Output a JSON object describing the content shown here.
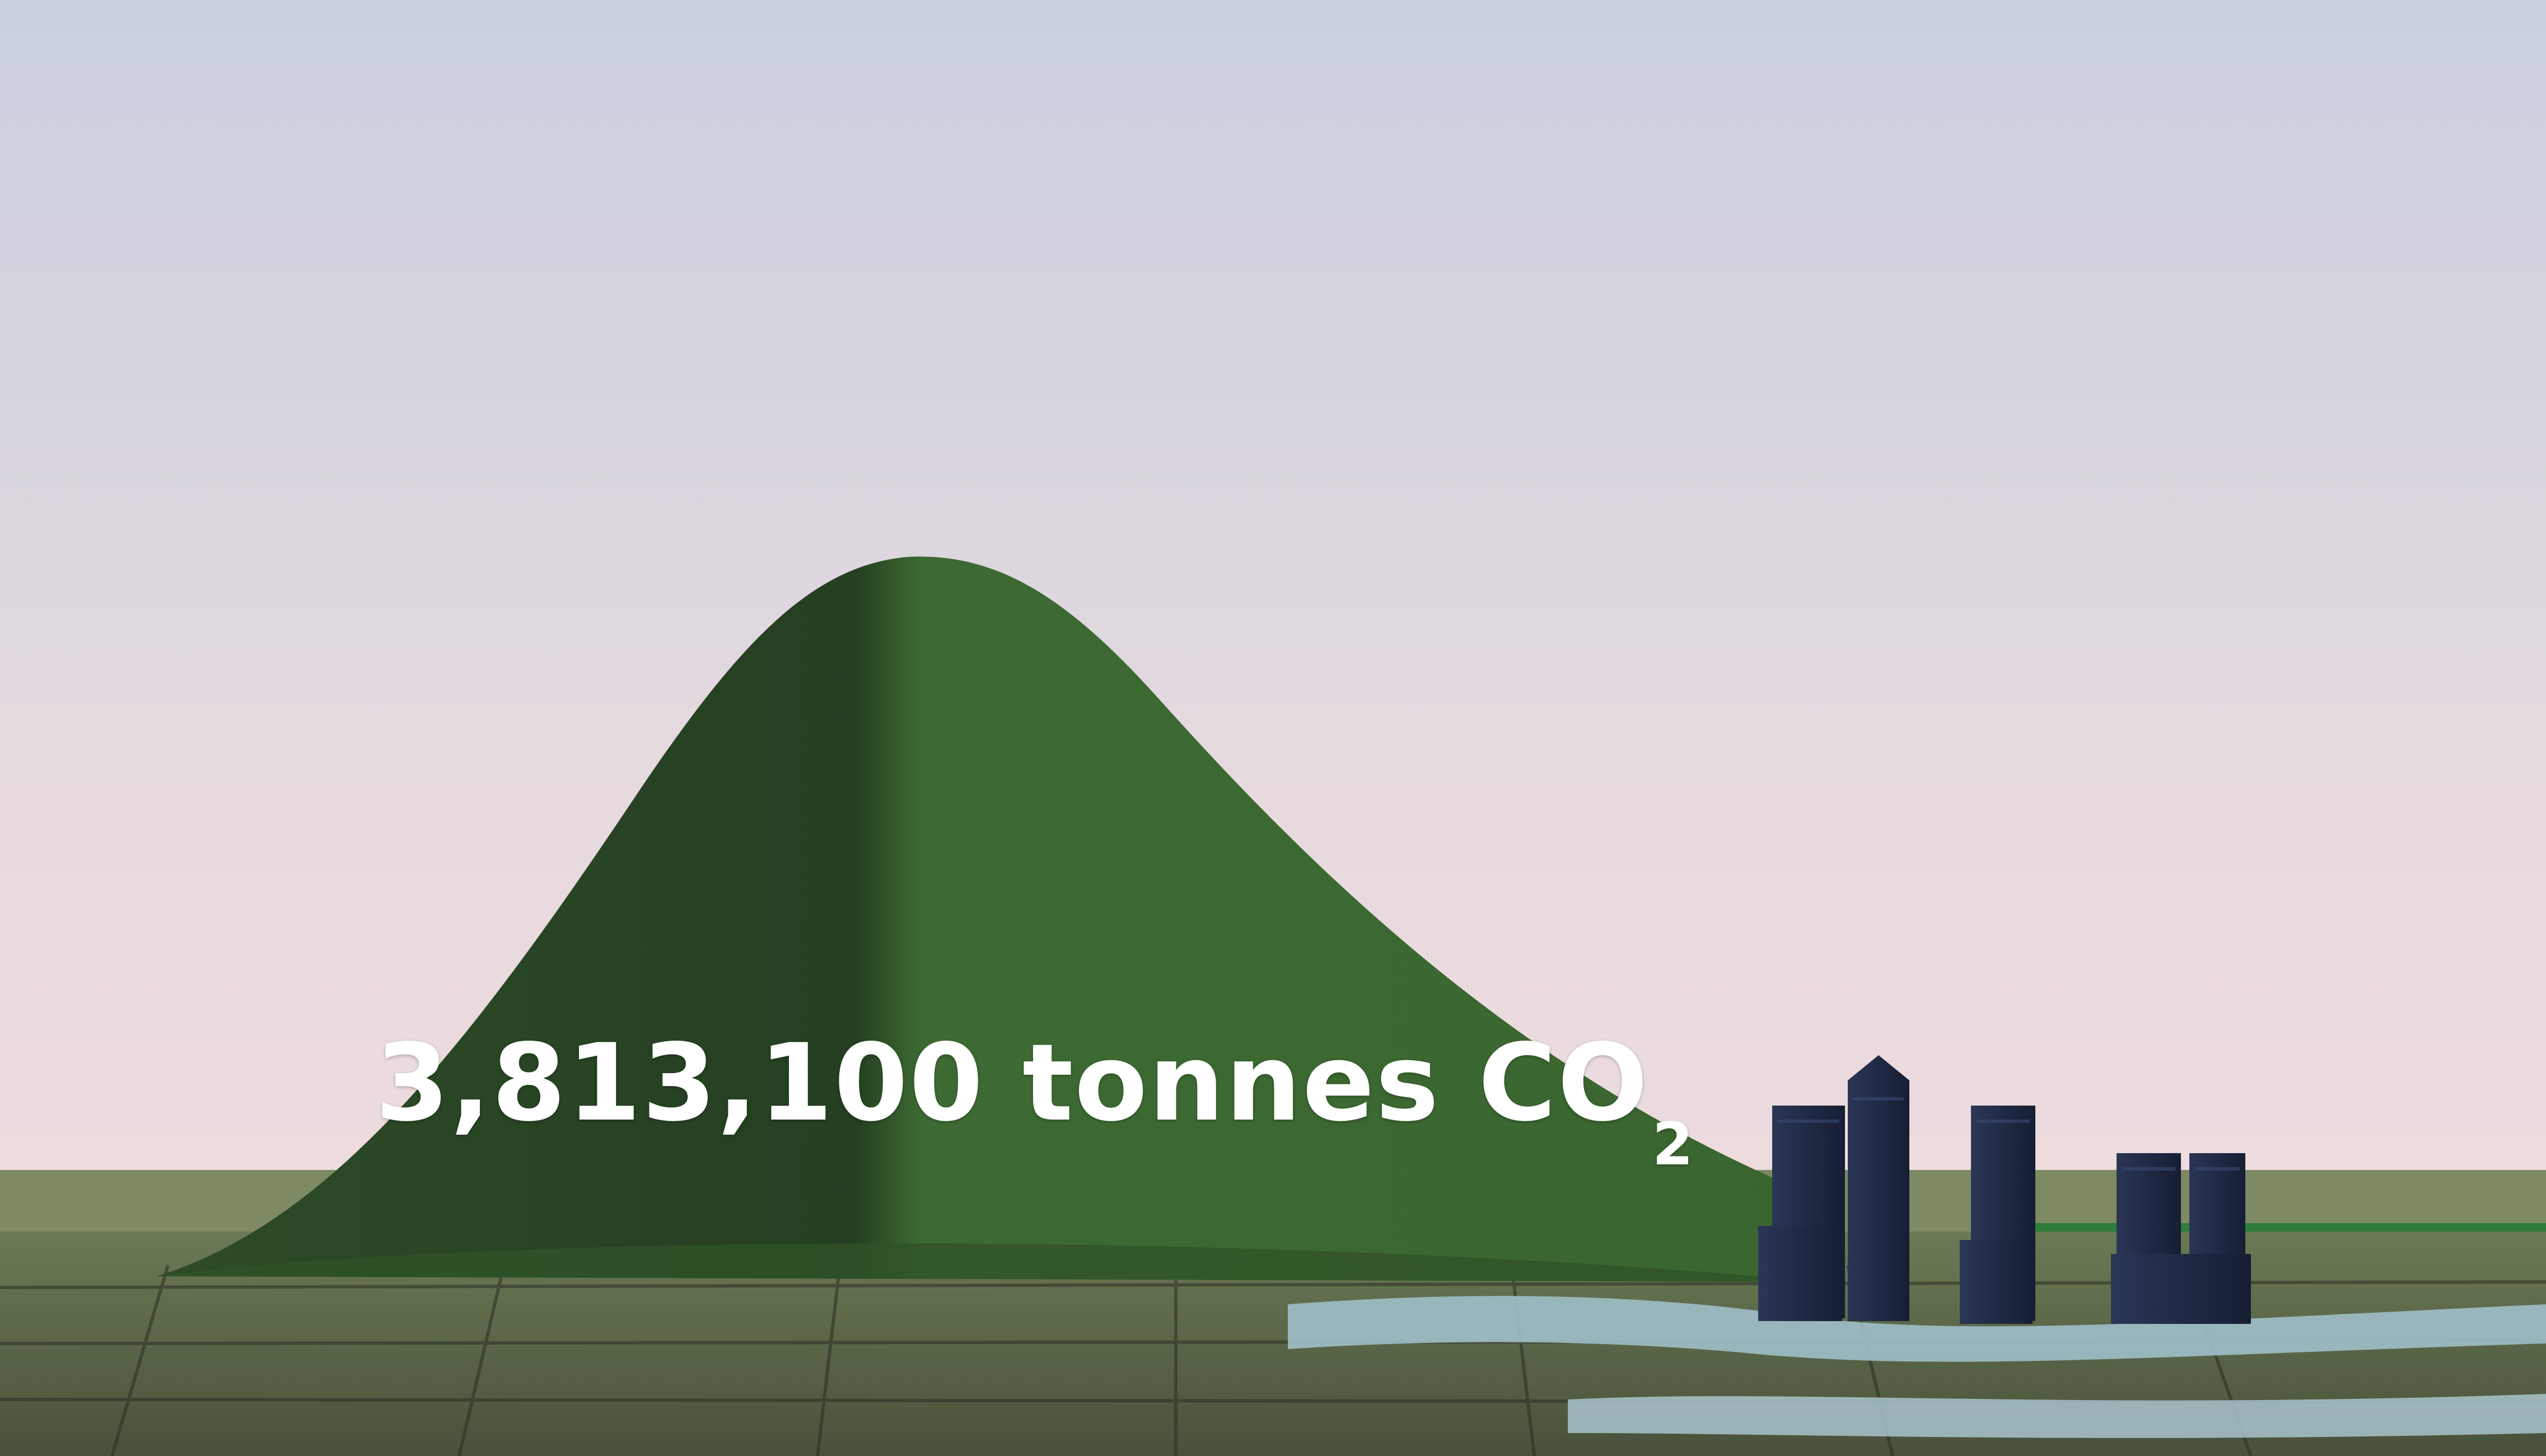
{
  "caption": {
    "amount": "3,813,100",
    "unit": "tonnes",
    "gas_main": "CO",
    "gas_subscript": "2"
  },
  "colors": {
    "sky_top": "#cdd2e0",
    "sky_bottom": "#f1dcdf",
    "mound_light": "#3f6b34",
    "mound_dark": "#22401f",
    "ground": "#4f5a3a",
    "water": "#8fb2bd",
    "buildings": "#1f2a45",
    "text": "#ffffff"
  }
}
